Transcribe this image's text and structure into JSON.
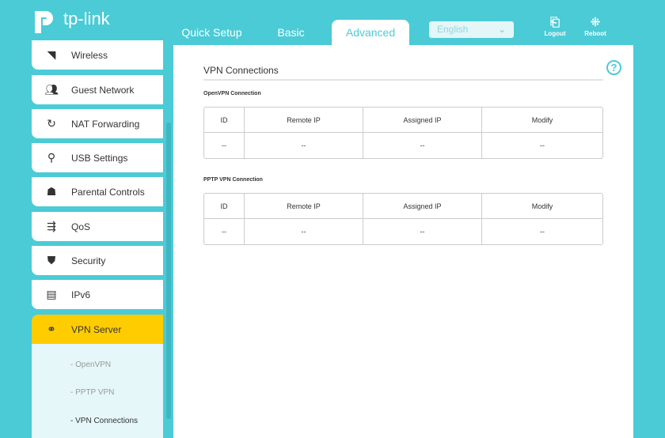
{
  "brand": "tp-link",
  "nav": {
    "tabs": [
      "Quick Setup",
      "Basic",
      "Advanced"
    ],
    "active": "Advanced",
    "language": "English",
    "logout": "Logout",
    "reboot": "Reboot"
  },
  "colors": {
    "accent": "#4bcbd6",
    "active_menu": "#ffcc00"
  },
  "sidebar": {
    "items": [
      {
        "label": "Wireless",
        "icon": "wifi-icon"
      },
      {
        "label": "Guest Network",
        "icon": "users-icon"
      },
      {
        "label": "NAT Forwarding",
        "icon": "nat-icon"
      },
      {
        "label": "USB Settings",
        "icon": "usb-icon"
      },
      {
        "label": "Parental Controls",
        "icon": "family-icon"
      },
      {
        "label": "QoS",
        "icon": "qos-icon"
      },
      {
        "label": "Security",
        "icon": "shield-icon"
      },
      {
        "label": "IPv6",
        "icon": "ipv6-icon"
      },
      {
        "label": "VPN Server",
        "icon": "link-icon"
      }
    ],
    "submenu": [
      "- OpenVPN",
      "- PPTP VPN",
      "- VPN Connections"
    ]
  },
  "main": {
    "title": "VPN Connections",
    "sections": [
      {
        "title": "OpenVPN Connection",
        "headers": [
          "ID",
          "Remote IP",
          "Assigned IP",
          "Modify"
        ],
        "row": [
          "--",
          "--",
          "--",
          "--"
        ]
      },
      {
        "title": "PPTP VPN Connection",
        "headers": [
          "ID",
          "Remote IP",
          "Assigned IP",
          "Modify"
        ],
        "row": [
          "--",
          "--",
          "--",
          "--"
        ]
      }
    ]
  }
}
